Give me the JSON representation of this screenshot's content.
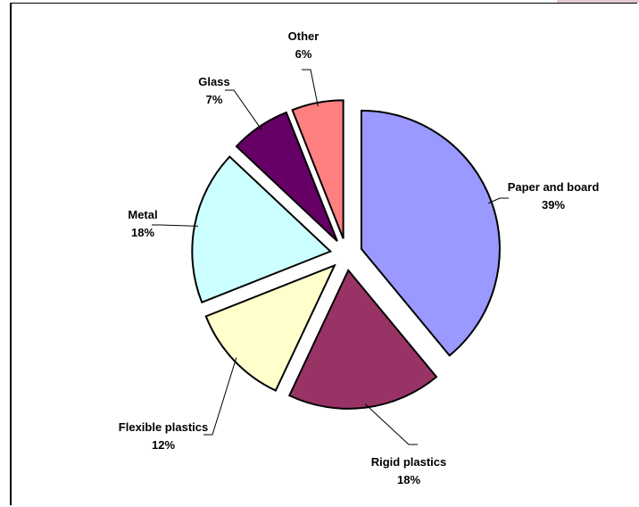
{
  "chart_data": {
    "type": "pie",
    "title": "",
    "exploded": true,
    "slices": [
      {
        "name": "Paper and board",
        "value": 39,
        "label": "39%",
        "color": "#9999ff"
      },
      {
        "name": "Rigid plastics",
        "value": 18,
        "label": "18%",
        "color": "#993366"
      },
      {
        "name": "Flexible plastics",
        "value": 12,
        "label": "12%",
        "color": "#ffffcc"
      },
      {
        "name": "Metal",
        "value": 18,
        "label": "18%",
        "color": "#ccffff"
      },
      {
        "name": "Glass",
        "value": 7,
        "label": "7%",
        "color": "#660066"
      },
      {
        "name": "Other",
        "value": 6,
        "label": "6%",
        "color": "#ff8080"
      }
    ]
  }
}
